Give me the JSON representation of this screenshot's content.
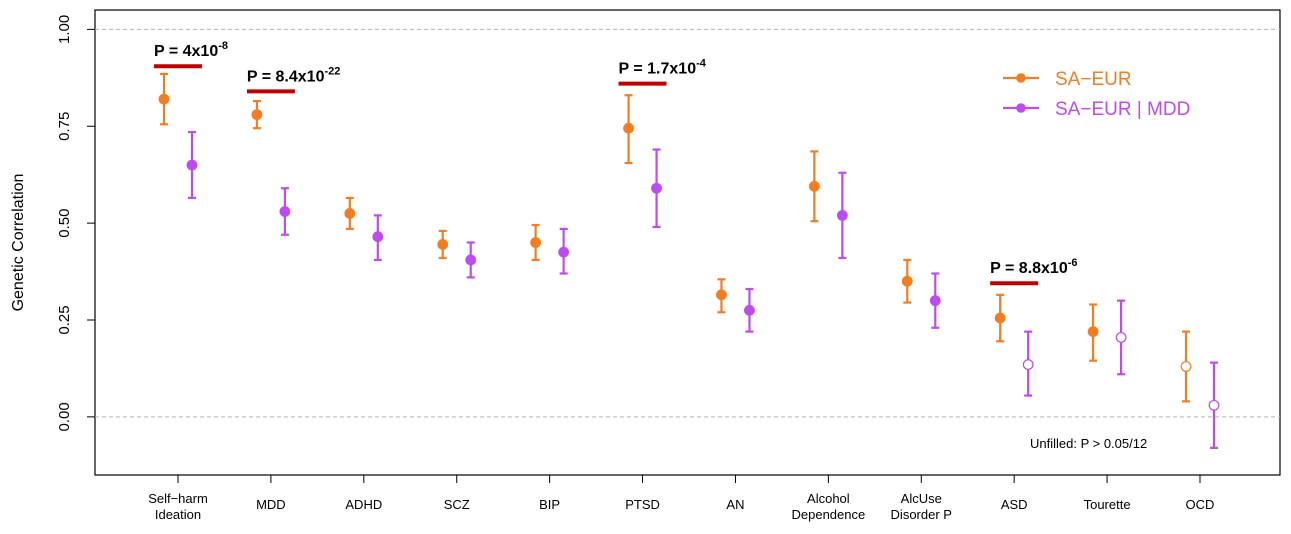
{
  "chart_data": {
    "type": "errorbar",
    "ylabel": "Genetic Correlation",
    "ylim": [
      -0.15,
      1.05
    ],
    "yticks": [
      "0.00",
      "0.25",
      "0.50",
      "0.75",
      "1.00"
    ],
    "ytick_values": [
      0,
      0.25,
      0.5,
      0.75,
      1.0
    ],
    "reference_lines": [
      0,
      1
    ],
    "categories": [
      [
        "Self−harm",
        "Ideation"
      ],
      [
        "MDD"
      ],
      [
        "ADHD"
      ],
      [
        "SCZ"
      ],
      [
        "BIP"
      ],
      [
        "PTSD"
      ],
      [
        "AN"
      ],
      [
        "Alcohol",
        "Dependence"
      ],
      [
        "AlcUse",
        "Disorder P"
      ],
      [
        "ASD"
      ],
      [
        "Tourette"
      ],
      [
        "OCD"
      ]
    ],
    "series": [
      {
        "name": "SA−EUR",
        "color": "#F47D20",
        "values": [
          0.82,
          0.78,
          0.525,
          0.445,
          0.45,
          0.745,
          0.315,
          0.595,
          0.35,
          0.255,
          0.22,
          0.13
        ],
        "lower": [
          0.755,
          0.745,
          0.485,
          0.41,
          0.405,
          0.655,
          0.27,
          0.505,
          0.295,
          0.195,
          0.145,
          0.04
        ],
        "upper": [
          0.885,
          0.815,
          0.565,
          0.48,
          0.495,
          0.83,
          0.355,
          0.685,
          0.405,
          0.315,
          0.29,
          0.22
        ],
        "filled": [
          true,
          true,
          true,
          true,
          true,
          true,
          true,
          true,
          true,
          true,
          true,
          false
        ]
      },
      {
        "name": "SA−EUR | MDD",
        "color": "#BE4BF0",
        "values": [
          0.65,
          0.53,
          0.465,
          0.405,
          0.425,
          0.59,
          0.275,
          0.52,
          0.3,
          0.135,
          0.205,
          0.03
        ],
        "lower": [
          0.565,
          0.47,
          0.405,
          0.36,
          0.37,
          0.49,
          0.22,
          0.41,
          0.23,
          0.055,
          0.11,
          -0.08
        ],
        "upper": [
          0.735,
          0.59,
          0.52,
          0.45,
          0.485,
          0.69,
          0.33,
          0.63,
          0.37,
          0.22,
          0.3,
          0.14
        ],
        "filled": [
          true,
          true,
          true,
          true,
          true,
          true,
          true,
          true,
          true,
          false,
          false,
          false
        ]
      }
    ],
    "annotations": [
      {
        "category_index": 0,
        "y": 0.905,
        "base": "P = 4x10",
        "exp": "-8"
      },
      {
        "category_index": 1,
        "y": 0.84,
        "base": "P = 8.4x10",
        "exp": "-22"
      },
      {
        "category_index": 5,
        "y": 0.86,
        "base": "P = 1.7x10",
        "exp": "-4"
      },
      {
        "category_index": 9,
        "y": 0.345,
        "base": "P = 8.8x10",
        "exp": "-6"
      }
    ],
    "annotation_line_color": "#C00000",
    "legend": {
      "placement": "top-right"
    },
    "note": "Unfilled: P > 0.05/12"
  }
}
